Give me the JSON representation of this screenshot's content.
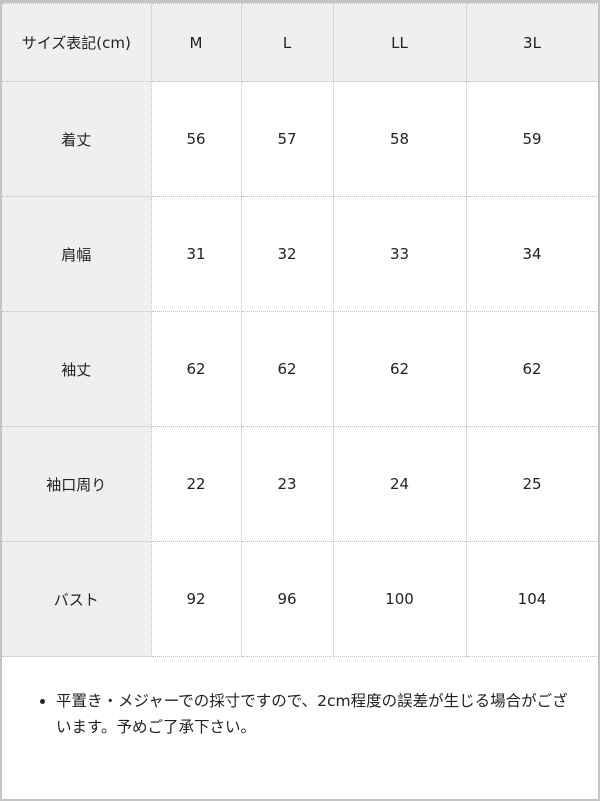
{
  "table": {
    "header": [
      "サイズ表記(cm)",
      "M",
      "L",
      "LL",
      "3L"
    ],
    "rows": [
      {
        "label": "着丈",
        "values": [
          "56",
          "57",
          "58",
          "59"
        ]
      },
      {
        "label": "肩幅",
        "values": [
          "31",
          "32",
          "33",
          "34"
        ]
      },
      {
        "label": "袖丈",
        "values": [
          "62",
          "62",
          "62",
          "62"
        ]
      },
      {
        "label": "袖口周り",
        "values": [
          "22",
          "23",
          "24",
          "25"
        ]
      },
      {
        "label": "バスト",
        "values": [
          "92",
          "96",
          "100",
          "104"
        ]
      }
    ]
  },
  "note": "平置き・メジャーでの採寸ですので、2cm程度の誤差が生じる場合がございます。予めご了承下さい。"
}
